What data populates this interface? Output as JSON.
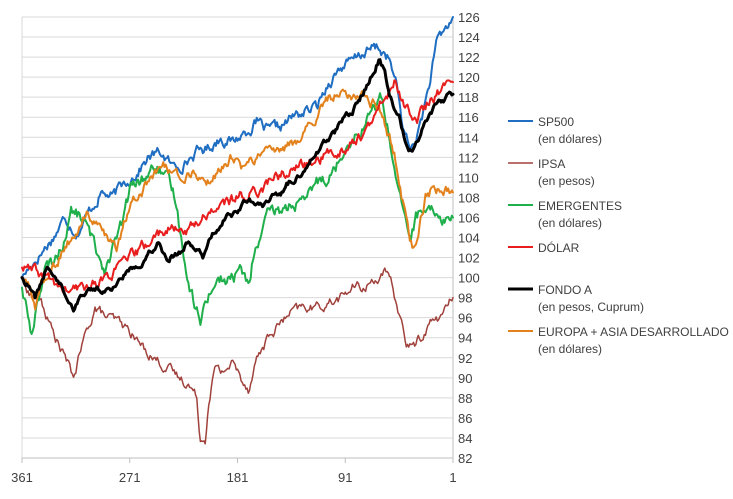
{
  "chart_data": {
    "type": "line",
    "x_axis": {
      "reversed": true,
      "min": 1,
      "max": 361,
      "ticks": [
        361,
        271,
        181,
        91,
        1
      ],
      "tick_labels": [
        "361",
        "271",
        "181",
        "91",
        "1"
      ]
    },
    "y_axis": {
      "position": "right",
      "ylim": [
        82,
        126
      ],
      "step": 2,
      "tick_labels": [
        "82",
        "84",
        "86",
        "88",
        "90",
        "92",
        "94",
        "96",
        "98",
        "100",
        "102",
        "104",
        "106",
        "108",
        "110",
        "112",
        "114",
        "116",
        "118",
        "120",
        "122",
        "124",
        "126"
      ]
    },
    "grid": {
      "horizontal": true,
      "vertical": false
    },
    "legend": {
      "placement": "right"
    },
    "series": [
      {
        "name": "SP500",
        "sublabel": "(en dólares)",
        "color": "#1F6EC2",
        "width": 2,
        "anchors": [
          [
            361,
            100
          ],
          [
            355,
            101
          ],
          [
            345,
            102.5
          ],
          [
            335,
            104
          ],
          [
            325,
            106
          ],
          [
            315,
            104.5
          ],
          [
            305,
            106.5
          ],
          [
            295,
            108.5
          ],
          [
            285,
            108
          ],
          [
            275,
            109.5
          ],
          [
            265,
            110.5
          ],
          [
            255,
            112
          ],
          [
            245,
            112.5
          ],
          [
            235,
            111
          ],
          [
            225,
            111.5
          ],
          [
            215,
            112.5
          ],
          [
            205,
            113
          ],
          [
            195,
            114
          ],
          [
            185,
            113.5
          ],
          [
            175,
            114.5
          ],
          [
            165,
            115.5
          ],
          [
            155,
            114.5
          ],
          [
            145,
            115
          ],
          [
            135,
            116
          ],
          [
            125,
            116.5
          ],
          [
            115,
            117
          ],
          [
            105,
            119.5
          ],
          [
            95,
            121
          ],
          [
            85,
            121.5
          ],
          [
            75,
            122.5
          ],
          [
            65,
            123
          ],
          [
            55,
            122
          ],
          [
            48,
            119
          ],
          [
            42,
            114.5
          ],
          [
            36,
            112.8
          ],
          [
            30,
            114.5
          ],
          [
            22,
            118.5
          ],
          [
            14,
            123.5
          ],
          [
            6,
            125
          ],
          [
            1,
            126
          ]
        ],
        "amp": 0.9
      },
      {
        "name": "IPSA",
        "sublabel": "(en pesos)",
        "color": "#A0413C",
        "width": 1.5,
        "anchors": [
          [
            361,
            100
          ],
          [
            355,
            98.5
          ],
          [
            345,
            97.5
          ],
          [
            335,
            94.5
          ],
          [
            325,
            92
          ],
          [
            318,
            90
          ],
          [
            310,
            93.5
          ],
          [
            300,
            97
          ],
          [
            290,
            96
          ],
          [
            280,
            95.5
          ],
          [
            270,
            94.5
          ],
          [
            260,
            93
          ],
          [
            250,
            92
          ],
          [
            240,
            91
          ],
          [
            230,
            90
          ],
          [
            222,
            89.5
          ],
          [
            215,
            88
          ],
          [
            212,
            84
          ],
          [
            208,
            84
          ],
          [
            205,
            88
          ],
          [
            200,
            91
          ],
          [
            195,
            90.5
          ],
          [
            185,
            91.5
          ],
          [
            178,
            90
          ],
          [
            172,
            89
          ],
          [
            165,
            92
          ],
          [
            155,
            94
          ],
          [
            145,
            95.5
          ],
          [
            135,
            96.5
          ],
          [
            125,
            97
          ],
          [
            115,
            97
          ],
          [
            105,
            97.5
          ],
          [
            95,
            98
          ],
          [
            85,
            99
          ],
          [
            75,
            99
          ],
          [
            65,
            100
          ],
          [
            58,
            100.5
          ],
          [
            52,
            99
          ],
          [
            45,
            96
          ],
          [
            40,
            93.5
          ],
          [
            35,
            93
          ],
          [
            28,
            94
          ],
          [
            20,
            95.5
          ],
          [
            12,
            96
          ],
          [
            6,
            97
          ],
          [
            1,
            98
          ]
        ],
        "amp": 0.8
      },
      {
        "name": "EMERGENTES",
        "sublabel": "(en dólares)",
        "color": "#1FAF4B",
        "width": 2,
        "anchors": [
          [
            361,
            99
          ],
          [
            357,
            97
          ],
          [
            353,
            94
          ],
          [
            348,
            98
          ],
          [
            342,
            100.5
          ],
          [
            335,
            101.5
          ],
          [
            328,
            103
          ],
          [
            320,
            106.5
          ],
          [
            310,
            106
          ],
          [
            300,
            103
          ],
          [
            292,
            101
          ],
          [
            285,
            103
          ],
          [
            278,
            105
          ],
          [
            270,
            109
          ],
          [
            262,
            109.5
          ],
          [
            255,
            110.5
          ],
          [
            248,
            111
          ],
          [
            240,
            109.5
          ],
          [
            233,
            108
          ],
          [
            228,
            104
          ],
          [
            222,
            100
          ],
          [
            218,
            98
          ],
          [
            215,
            97
          ],
          [
            212,
            95
          ],
          [
            208,
            98
          ],
          [
            203,
            99
          ],
          [
            196,
            100
          ],
          [
            190,
            99.5
          ],
          [
            184,
            100
          ],
          [
            178,
            101
          ],
          [
            172,
            99
          ],
          [
            168,
            102
          ],
          [
            162,
            104
          ],
          [
            155,
            106
          ],
          [
            148,
            106.5
          ],
          [
            140,
            107
          ],
          [
            132,
            107.5
          ],
          [
            125,
            107
          ],
          [
            118,
            109
          ],
          [
            110,
            110
          ],
          [
            102,
            110.5
          ],
          [
            95,
            112
          ],
          [
            88,
            114
          ],
          [
            80,
            114.5
          ],
          [
            72,
            116
          ],
          [
            66,
            117
          ],
          [
            62,
            118
          ],
          [
            57,
            116
          ],
          [
            52,
            112.5
          ],
          [
            48,
            110
          ],
          [
            44,
            107
          ],
          [
            40,
            105
          ],
          [
            36,
            104
          ],
          [
            32,
            106
          ],
          [
            28,
            106.5
          ],
          [
            22,
            106
          ],
          [
            16,
            106.5
          ],
          [
            10,
            106
          ],
          [
            5,
            106
          ],
          [
            1,
            106
          ]
        ],
        "amp": 1.1
      },
      {
        "name": "DÓLAR",
        "sublabel": "",
        "color": "#E81E1E",
        "width": 2,
        "anchors": [
          [
            361,
            101
          ],
          [
            350,
            100.5
          ],
          [
            340,
            100
          ],
          [
            330,
            99
          ],
          [
            320,
            98.5
          ],
          [
            310,
            99
          ],
          [
            300,
            99.5
          ],
          [
            290,
            100
          ],
          [
            280,
            101
          ],
          [
            270,
            102
          ],
          [
            260,
            103
          ],
          [
            250,
            104
          ],
          [
            240,
            105
          ],
          [
            230,
            104.5
          ],
          [
            220,
            105
          ],
          [
            210,
            106
          ],
          [
            200,
            107
          ],
          [
            190,
            107.5
          ],
          [
            180,
            108
          ],
          [
            170,
            108.5
          ],
          [
            160,
            109
          ],
          [
            150,
            110
          ],
          [
            140,
            110.5
          ],
          [
            130,
            111
          ],
          [
            120,
            111.5
          ],
          [
            110,
            112
          ],
          [
            100,
            112.5
          ],
          [
            90,
            113
          ],
          [
            80,
            114
          ],
          [
            70,
            115
          ],
          [
            62,
            117
          ],
          [
            55,
            118.5
          ],
          [
            50,
            119.5
          ],
          [
            45,
            118
          ],
          [
            40,
            117
          ],
          [
            35,
            116.5
          ],
          [
            30,
            116
          ],
          [
            24,
            117
          ],
          [
            18,
            118
          ],
          [
            12,
            118.5
          ],
          [
            6,
            119
          ],
          [
            1,
            119.5
          ]
        ],
        "amp": 0.9
      },
      {
        "name": "FONDO A",
        "sublabel": "(en pesos, Cuprum)",
        "color": "#000000",
        "width": 3,
        "anchors": [
          [
            361,
            100
          ],
          [
            355,
            99
          ],
          [
            350,
            98
          ],
          [
            345,
            99.5
          ],
          [
            340,
            101
          ],
          [
            332,
            100
          ],
          [
            325,
            98.5
          ],
          [
            318,
            97
          ],
          [
            310,
            98.5
          ],
          [
            300,
            99
          ],
          [
            292,
            98.5
          ],
          [
            285,
            99
          ],
          [
            278,
            100
          ],
          [
            270,
            101
          ],
          [
            262,
            101.5
          ],
          [
            255,
            102.5
          ],
          [
            248,
            103.5
          ],
          [
            240,
            102
          ],
          [
            230,
            102.5
          ],
          [
            222,
            103.5
          ],
          [
            215,
            103
          ],
          [
            210,
            102
          ],
          [
            205,
            104
          ],
          [
            198,
            105
          ],
          [
            190,
            106
          ],
          [
            182,
            106.5
          ],
          [
            175,
            107.5
          ],
          [
            168,
            107.5
          ],
          [
            160,
            107
          ],
          [
            152,
            108
          ],
          [
            145,
            108.5
          ],
          [
            138,
            109.5
          ],
          [
            130,
            110
          ],
          [
            122,
            111.5
          ],
          [
            115,
            112.5
          ],
          [
            108,
            113.5
          ],
          [
            100,
            114.5
          ],
          [
            92,
            116
          ],
          [
            85,
            116.5
          ],
          [
            78,
            118
          ],
          [
            72,
            119.5
          ],
          [
            66,
            121
          ],
          [
            62,
            122
          ],
          [
            58,
            120.5
          ],
          [
            54,
            118.5
          ],
          [
            50,
            117
          ],
          [
            46,
            116
          ],
          [
            42,
            114
          ],
          [
            38,
            113
          ],
          [
            34,
            113
          ],
          [
            30,
            114
          ],
          [
            26,
            115
          ],
          [
            20,
            116.5
          ],
          [
            14,
            117.5
          ],
          [
            8,
            117.8
          ],
          [
            1,
            118.3
          ]
        ],
        "amp": 0.5
      },
      {
        "name": "EUROPA + ASIA DESARROLLADO",
        "sublabel": "(en dólares)",
        "color": "#E3821C",
        "width": 2,
        "anchors": [
          [
            361,
            100
          ],
          [
            355,
            99
          ],
          [
            350,
            97
          ],
          [
            345,
            99.5
          ],
          [
            338,
            100.5
          ],
          [
            330,
            102
          ],
          [
            322,
            103.5
          ],
          [
            314,
            104.5
          ],
          [
            306,
            106.5
          ],
          [
            298,
            105
          ],
          [
            290,
            103.5
          ],
          [
            282,
            103
          ],
          [
            274,
            106
          ],
          [
            266,
            108
          ],
          [
            258,
            109
          ],
          [
            250,
            110
          ],
          [
            242,
            111
          ],
          [
            234,
            110.5
          ],
          [
            226,
            110
          ],
          [
            218,
            110.5
          ],
          [
            210,
            110
          ],
          [
            202,
            109.5
          ],
          [
            194,
            111
          ],
          [
            186,
            112
          ],
          [
            178,
            111
          ],
          [
            170,
            111.5
          ],
          [
            162,
            112.5
          ],
          [
            154,
            113
          ],
          [
            146,
            112.5
          ],
          [
            138,
            113
          ],
          [
            130,
            114
          ],
          [
            122,
            115
          ],
          [
            114,
            116
          ],
          [
            106,
            117.5
          ],
          [
            98,
            118.5
          ],
          [
            90,
            118.5
          ],
          [
            82,
            118
          ],
          [
            75,
            118.5
          ],
          [
            68,
            117.5
          ],
          [
            62,
            116.5
          ],
          [
            56,
            114.5
          ],
          [
            50,
            112.5
          ],
          [
            46,
            110
          ],
          [
            42,
            107
          ],
          [
            38,
            104.5
          ],
          [
            35,
            103
          ],
          [
            32,
            104
          ],
          [
            28,
            106
          ],
          [
            24,
            108
          ],
          [
            18,
            109
          ],
          [
            12,
            108.5
          ],
          [
            6,
            108.5
          ],
          [
            1,
            108.5
          ]
        ],
        "amp": 0.9
      }
    ]
  }
}
